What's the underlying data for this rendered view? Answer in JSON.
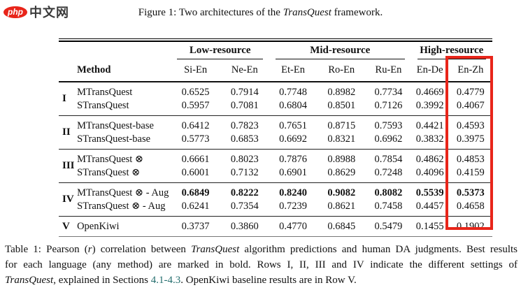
{
  "logo": {
    "php": "php",
    "cn": "中文网"
  },
  "figure_caption": {
    "segments": [
      {
        "t": "Figure 1: Two architectures of the "
      },
      {
        "t": "TransQuest",
        "s": "i"
      },
      {
        "t": " framework."
      }
    ]
  },
  "table": {
    "method_header": "Method",
    "groups": [
      {
        "label": "Low-resource",
        "span": 2
      },
      {
        "label": "Mid-resource",
        "span": 3
      },
      {
        "label": "High-resource",
        "span": 2
      }
    ],
    "columns": [
      "Si-En",
      "Ne-En",
      "Et-En",
      "Ro-En",
      "Ru-En",
      "En-De",
      "En-Zh"
    ],
    "highlighted_column": "En-Zh",
    "highlight_color": "#e8251a",
    "blocks": [
      {
        "roman": "I",
        "rows": [
          {
            "method": "MTransQuest",
            "values": [
              "0.6525",
              "0.7914",
              "0.7748",
              "0.8982",
              "0.7734",
              "0.4669",
              "0.4779"
            ]
          },
          {
            "method": "STransQuest",
            "values": [
              "0.5957",
              "0.7081",
              "0.6804",
              "0.8501",
              "0.7126",
              "0.3992",
              "0.4067"
            ]
          }
        ]
      },
      {
        "roman": "II",
        "rows": [
          {
            "method": "MTransQuest-base",
            "values": [
              "0.6412",
              "0.7823",
              "0.7651",
              "0.8715",
              "0.7593",
              "0.4421",
              "0.4593"
            ]
          },
          {
            "method": "STransQuest-base",
            "values": [
              "0.5773",
              "0.6853",
              "0.6692",
              "0.8321",
              "0.6962",
              "0.3832",
              "0.3975"
            ]
          }
        ]
      },
      {
        "roman": "III",
        "rows": [
          {
            "method": "MTransQuest ⊗",
            "values": [
              "0.6661",
              "0.8023",
              "0.7876",
              "0.8988",
              "0.7854",
              "0.4862",
              "0.4853"
            ]
          },
          {
            "method": "STransQuest ⊗",
            "values": [
              "0.6001",
              "0.7132",
              "0.6901",
              "0.8629",
              "0.7248",
              "0.4096",
              "0.4159"
            ]
          }
        ]
      },
      {
        "roman": "IV",
        "rows": [
          {
            "method": "MTransQuest ⊗ - Aug",
            "values": [
              "0.6849",
              "0.8222",
              "0.8240",
              "0.9082",
              "0.8082",
              "0.5539",
              "0.5373"
            ],
            "values_bold": true
          },
          {
            "method": "STransQuest ⊗ - Aug",
            "values": [
              "0.6241",
              "0.7354",
              "0.7239",
              "0.8621",
              "0.7458",
              "0.4457",
              "0.4658"
            ]
          }
        ]
      },
      {
        "roman": "V",
        "rows": [
          {
            "method": "OpenKiwi",
            "values": [
              "0.3737",
              "0.3860",
              "0.4770",
              "0.6845",
              "0.5479",
              "0.1455",
              "0.1902"
            ]
          }
        ]
      }
    ]
  },
  "table_caption": {
    "lines": [
      {
        "justify": true,
        "segments": [
          {
            "t": "Table 1: Pearson ("
          },
          {
            "t": "r",
            "s": "i"
          },
          {
            "t": ") correlation between "
          },
          {
            "t": "TransQuest",
            "s": "i"
          },
          {
            "t": " algorithm predictions and human DA judgments. Best results"
          }
        ]
      },
      {
        "justify": true,
        "segments": [
          {
            "t": "for each language (any method) are marked in bold.  Rows I, II, III and IV indicate the different settings of"
          }
        ]
      },
      {
        "justify": false,
        "segments": [
          {
            "t": "TransQuest",
            "s": "i"
          },
          {
            "t": ", explained in Sections "
          },
          {
            "t": "4.1-4.3",
            "s": "link"
          },
          {
            "t": ". OpenKiwi baseline results are in Row V."
          }
        ]
      }
    ]
  }
}
